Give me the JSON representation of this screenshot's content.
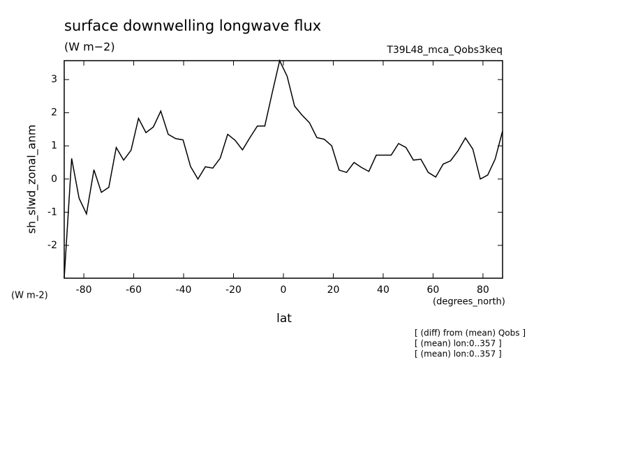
{
  "chart_data": {
    "type": "line",
    "title": "surface downwelling longwave flux",
    "subtitle": "(W m−2)",
    "run_label": "T39L48_mca_Qobs3keq",
    "y_label": "sh_slwd_zonal_anm",
    "y_units": "(W m-2)",
    "x_units": "(degrees_north)",
    "x_label": "lat",
    "notes": [
      "[ (diff) from (mean) Qobs ]",
      "[ (mean) lon:0..357 ]",
      "[ (mean) lon:0..357 ]"
    ],
    "color": "#000000",
    "x": [
      -87.86,
      -84.88,
      -81.9,
      -78.93,
      -75.95,
      -72.97,
      -69.99,
      -67.01,
      -64.04,
      -61.06,
      -58.08,
      -55.1,
      -52.12,
      -49.15,
      -46.17,
      -43.19,
      -40.21,
      -37.23,
      -34.26,
      -31.28,
      -28.3,
      -25.32,
      -22.34,
      -19.37,
      -16.39,
      -13.41,
      -10.43,
      -7.45,
      -4.48,
      -1.5,
      1.5,
      4.48,
      7.45,
      10.43,
      13.41,
      16.39,
      19.37,
      22.34,
      25.32,
      28.3,
      31.28,
      34.26,
      37.23,
      40.21,
      43.19,
      46.17,
      49.15,
      52.12,
      55.1,
      58.08,
      61.06,
      64.04,
      67.01,
      69.99,
      72.97,
      75.95,
      78.93,
      81.9,
      84.88,
      87.86
    ],
    "values": [
      -2.98,
      0.62,
      -0.58,
      -1.05,
      0.28,
      -0.4,
      -0.25,
      0.95,
      0.57,
      0.87,
      1.83,
      1.4,
      1.57,
      2.05,
      1.35,
      1.22,
      1.18,
      0.38,
      0.0,
      0.37,
      0.33,
      0.63,
      1.35,
      1.17,
      0.88,
      1.25,
      1.6,
      1.6,
      2.6,
      3.57,
      3.1,
      2.2,
      1.93,
      1.7,
      1.25,
      1.2,
      1.0,
      0.27,
      0.2,
      0.5,
      0.35,
      0.23,
      0.72,
      0.72,
      0.72,
      1.07,
      0.95,
      0.57,
      0.6,
      0.2,
      0.06,
      0.45,
      0.55,
      0.85,
      1.24,
      0.9,
      0.0,
      0.12,
      0.6,
      1.45
    ],
    "xlim": [
      -87.86,
      87.86
    ],
    "xticks": [
      -80,
      -60,
      -40,
      -20,
      0,
      20,
      40,
      60,
      80
    ],
    "ylim": [
      -2.99,
      3.57
    ],
    "yticks": [
      -2,
      -1,
      0,
      1,
      2,
      3
    ]
  }
}
